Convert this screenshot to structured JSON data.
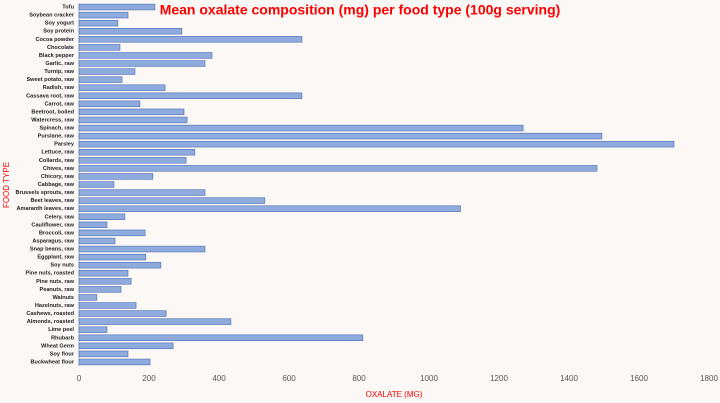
{
  "chart_data": {
    "type": "barh",
    "title": "Mean oxalate composition (mg) per food type (100g serving)",
    "x_label": "OXALATE (MG)",
    "y_label": "FOOD TYPE",
    "categories": [
      "Tofu",
      "Soybean cracker",
      "Soy yogurt",
      "Soy protein",
      "Cocoa powder",
      "Chocolate",
      "Black pepper",
      "Garlic, raw",
      "Turnip, raw",
      "Sweet potato, raw",
      "Radish, raw",
      "Cassava root, raw",
      "Carrot, raw",
      "Beetroot, boiled",
      "Watercress, raw",
      "Spinach, raw",
      "Purslane, raw",
      "Parsley",
      "Lettuce, raw",
      "Collards, raw",
      "Chives, raw",
      "Chicory, raw",
      "Cabbage, raw",
      "Brussels sprouts, raw",
      "Beet leaves, raw",
      "Amaranth leaves, raw",
      "Celery, raw",
      "Cauliflower, raw",
      "Broccoli, raw",
      "Asparagus, raw",
      "Snap beans, raw",
      "Eggplant, raw",
      "Soy nuts",
      "Pine nuts, roasted",
      "Pine nuts, raw",
      "Peanuts, raw",
      "Walnuts",
      "Hazelnuts, raw",
      "Cashews, roasted",
      "Almonds, roasted",
      "Lime peel",
      "Rhubarb",
      "Wheat Germ",
      "Soy flour",
      "Buckwheat flour"
    ],
    "values": [
      217,
      140,
      111,
      294,
      637,
      117,
      380,
      360,
      160,
      123,
      246,
      637,
      174,
      300,
      309,
      1269,
      1494,
      1700,
      331,
      306,
      1480,
      211,
      100,
      360,
      531,
      1090,
      131,
      80,
      189,
      103,
      360,
      191,
      234,
      140,
      149,
      120,
      51,
      163,
      249,
      434,
      80,
      811,
      269,
      140,
      203
    ],
    "color": "#8faadc",
    "xlim": [
      0,
      1800
    ],
    "xticks": [
      0,
      200,
      400,
      600,
      800,
      1000,
      1200,
      1400,
      1600,
      1800
    ],
    "grid": false
  }
}
